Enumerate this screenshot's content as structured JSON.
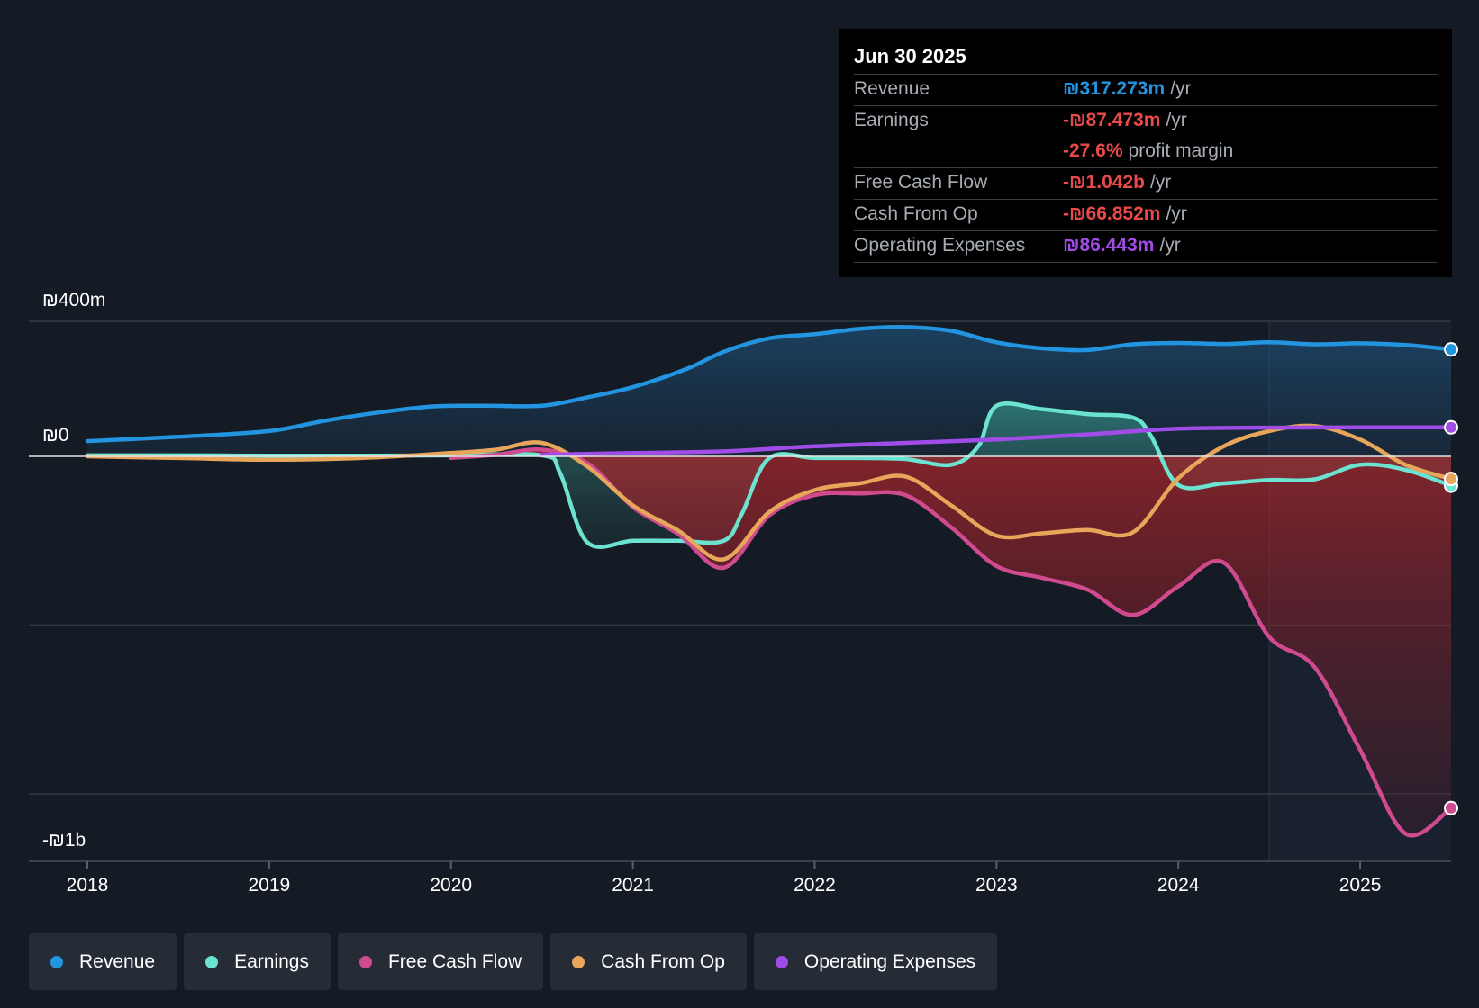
{
  "chart_data": {
    "type": "area",
    "y_axis": {
      "top_label": "₪400m",
      "zero_label": "₪0",
      "bottom_label": "-₪1b",
      "ylim": [
        -1200,
        400
      ]
    },
    "x_axis": {
      "ticks": [
        "2018",
        "2019",
        "2020",
        "2021",
        "2022",
        "2023",
        "2024",
        "2025"
      ],
      "xlim": [
        2017.68,
        2025.5
      ]
    },
    "forecast_start": 2024.5,
    "series": [
      {
        "name": "Revenue",
        "color": "#2394df",
        "points": [
          [
            2018,
            45
          ],
          [
            2018.5,
            58
          ],
          [
            2019,
            75
          ],
          [
            2019.3,
            105
          ],
          [
            2019.6,
            130
          ],
          [
            2019.9,
            148
          ],
          [
            2020.2,
            150
          ],
          [
            2020.5,
            150
          ],
          [
            2020.75,
            175
          ],
          [
            2021,
            205
          ],
          [
            2021.3,
            260
          ],
          [
            2021.5,
            310
          ],
          [
            2021.75,
            350
          ],
          [
            2022,
            362
          ],
          [
            2022.25,
            378
          ],
          [
            2022.5,
            383
          ],
          [
            2022.75,
            372
          ],
          [
            2023,
            338
          ],
          [
            2023.25,
            320
          ],
          [
            2023.5,
            315
          ],
          [
            2023.75,
            332
          ],
          [
            2024,
            336
          ],
          [
            2024.25,
            333
          ],
          [
            2024.5,
            338
          ],
          [
            2024.75,
            332
          ],
          [
            2025,
            335
          ],
          [
            2025.25,
            330
          ],
          [
            2025.5,
            317
          ]
        ]
      },
      {
        "name": "Earnings",
        "color": "#6be3d0",
        "points": [
          [
            2018,
            3
          ],
          [
            2018.5,
            3
          ],
          [
            2019,
            2
          ],
          [
            2019.5,
            2
          ],
          [
            2020,
            3
          ],
          [
            2020.5,
            3
          ],
          [
            2020.6,
            -50
          ],
          [
            2020.75,
            -255
          ],
          [
            2021,
            -250
          ],
          [
            2021.25,
            -250
          ],
          [
            2021.5,
            -250
          ],
          [
            2021.6,
            -170
          ],
          [
            2021.75,
            -5
          ],
          [
            2022,
            -5
          ],
          [
            2022.25,
            -5
          ],
          [
            2022.5,
            -8
          ],
          [
            2022.75,
            -25
          ],
          [
            2022.9,
            30
          ],
          [
            2023,
            150
          ],
          [
            2023.25,
            140
          ],
          [
            2023.5,
            125
          ],
          [
            2023.75,
            115
          ],
          [
            2023.85,
            60
          ],
          [
            2024,
            -85
          ],
          [
            2024.25,
            -80
          ],
          [
            2024.5,
            -70
          ],
          [
            2024.75,
            -68
          ],
          [
            2025,
            -25
          ],
          [
            2025.25,
            -40
          ],
          [
            2025.5,
            -87
          ]
        ]
      },
      {
        "name": "Free Cash Flow",
        "color": "#d04a8f",
        "points": [
          [
            2020,
            -5
          ],
          [
            2020.25,
            5
          ],
          [
            2020.5,
            20
          ],
          [
            2020.75,
            -20
          ],
          [
            2021,
            -150
          ],
          [
            2021.25,
            -230
          ],
          [
            2021.5,
            -330
          ],
          [
            2021.75,
            -175
          ],
          [
            2022,
            -115
          ],
          [
            2022.25,
            -110
          ],
          [
            2022.5,
            -115
          ],
          [
            2022.75,
            -210
          ],
          [
            2023,
            -325
          ],
          [
            2023.25,
            -360
          ],
          [
            2023.5,
            -395
          ],
          [
            2023.75,
            -470
          ],
          [
            2024,
            -385
          ],
          [
            2024.25,
            -315
          ],
          [
            2024.5,
            -535
          ],
          [
            2024.75,
            -625
          ],
          [
            2025,
            -870
          ],
          [
            2025.25,
            -1118
          ],
          [
            2025.5,
            -1042
          ]
        ]
      },
      {
        "name": "Cash From Op",
        "color": "#e8a65a",
        "points": [
          [
            2018,
            0
          ],
          [
            2018.5,
            -5
          ],
          [
            2019,
            -10
          ],
          [
            2019.5,
            -5
          ],
          [
            2020,
            10
          ],
          [
            2020.25,
            20
          ],
          [
            2020.5,
            40
          ],
          [
            2020.75,
            -30
          ],
          [
            2021,
            -145
          ],
          [
            2021.25,
            -220
          ],
          [
            2021.5,
            -305
          ],
          [
            2021.75,
            -165
          ],
          [
            2022,
            -100
          ],
          [
            2022.25,
            -80
          ],
          [
            2022.5,
            -60
          ],
          [
            2022.75,
            -145
          ],
          [
            2023,
            -235
          ],
          [
            2023.25,
            -228
          ],
          [
            2023.5,
            -218
          ],
          [
            2023.75,
            -225
          ],
          [
            2024,
            -65
          ],
          [
            2024.25,
            30
          ],
          [
            2024.5,
            75
          ],
          [
            2024.75,
            90
          ],
          [
            2025,
            50
          ],
          [
            2025.25,
            -25
          ],
          [
            2025.5,
            -67
          ]
        ]
      },
      {
        "name": "Operating Expenses",
        "color": "#a04ce6",
        "points": [
          [
            2020.5,
            5
          ],
          [
            2021,
            10
          ],
          [
            2021.5,
            15
          ],
          [
            2022,
            30
          ],
          [
            2022.5,
            40
          ],
          [
            2023,
            50
          ],
          [
            2023.5,
            65
          ],
          [
            2024,
            82
          ],
          [
            2024.5,
            85
          ],
          [
            2025,
            86
          ],
          [
            2025.5,
            86
          ]
        ]
      }
    ]
  },
  "tooltip": {
    "date": "Jun 30 2025",
    "rows": [
      {
        "label": "Revenue",
        "value": "₪317.273m",
        "unit": "/yr",
        "color": "#2394df"
      },
      {
        "label": "Earnings",
        "value": "-₪87.473m",
        "unit": "/yr",
        "color": "#e84a4a"
      },
      {
        "label": "",
        "value": "-27.6%",
        "unit": "profit margin",
        "color": "#e84a4a"
      },
      {
        "label": "Free Cash Flow",
        "value": "-₪1.042b",
        "unit": "/yr",
        "color": "#e84a4a"
      },
      {
        "label": "Cash From Op",
        "value": "-₪66.852m",
        "unit": "/yr",
        "color": "#e84a4a"
      },
      {
        "label": "Operating Expenses",
        "value": "₪86.443m",
        "unit": "/yr",
        "color": "#a04ce6"
      }
    ]
  },
  "legend": [
    {
      "label": "Revenue",
      "color": "#2394df"
    },
    {
      "label": "Earnings",
      "color": "#6be3d0"
    },
    {
      "label": "Free Cash Flow",
      "color": "#d04a8f"
    },
    {
      "label": "Cash From Op",
      "color": "#e8a65a"
    },
    {
      "label": "Operating Expenses",
      "color": "#a04ce6"
    }
  ]
}
